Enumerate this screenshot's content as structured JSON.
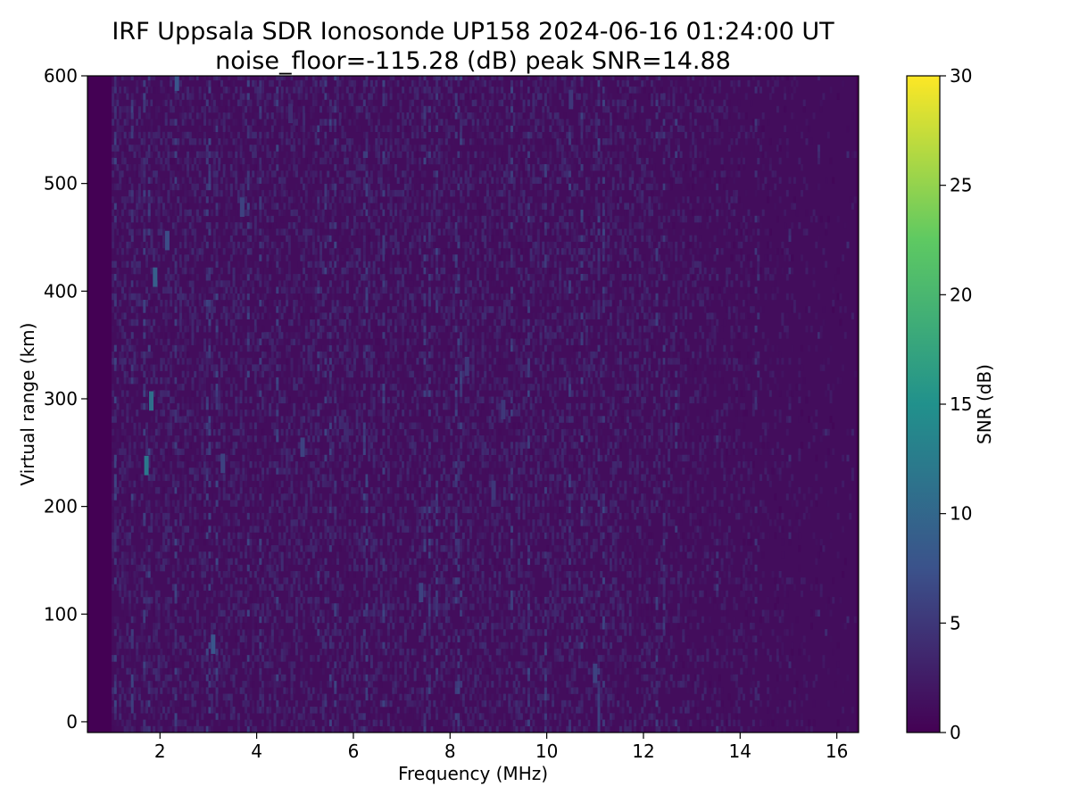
{
  "chart_data": {
    "type": "heatmap",
    "title": "IRF Uppsala SDR Ionosonde UP158 2024-06-16 01:24:00  UT",
    "subtitle": "noise_floor=-115.28 (dB) peak SNR=14.88",
    "xlabel": "Frequency (MHz)",
    "ylabel": "Virtual range (km)",
    "xlim": [
      0.5,
      16.45
    ],
    "ylim": [
      -10,
      600
    ],
    "x_ticks": [
      2,
      4,
      6,
      8,
      10,
      12,
      14,
      16
    ],
    "x_tick_labels": [
      "2",
      "4",
      "6",
      "8",
      "10",
      "12",
      "14",
      "16"
    ],
    "y_ticks": [
      0,
      100,
      200,
      300,
      400,
      500,
      600
    ],
    "y_tick_labels": [
      "0",
      "100",
      "200",
      "300",
      "400",
      "500",
      "600"
    ],
    "frequency_range_mhz": [
      1.0,
      16.4
    ],
    "background_snr_db": 0.5,
    "colorbar": {
      "label": "SNR (dB)",
      "range": [
        0,
        30
      ],
      "ticks": [
        0,
        5,
        10,
        15,
        20,
        25,
        30
      ],
      "tick_labels": [
        "0",
        "5",
        "10",
        "15",
        "20",
        "25",
        "30"
      ],
      "colormap": "viridis"
    },
    "grid": false,
    "legend": "none",
    "highlights": [
      {
        "freq_mhz": 1.72,
        "range_km": 238,
        "snr_db": 12
      },
      {
        "freq_mhz": 1.82,
        "range_km": 298,
        "snr_db": 11
      },
      {
        "freq_mhz": 1.9,
        "range_km": 413,
        "snr_db": 9
      },
      {
        "freq_mhz": 2.35,
        "range_km": 595,
        "snr_db": 8
      },
      {
        "freq_mhz": 2.15,
        "range_km": 447,
        "snr_db": 7
      },
      {
        "freq_mhz": 3.1,
        "range_km": 72,
        "snr_db": 8
      },
      {
        "freq_mhz": 4.95,
        "range_km": 255,
        "snr_db": 6
      },
      {
        "freq_mhz": 3.3,
        "range_km": 240,
        "snr_db": 6
      },
      {
        "freq_mhz": 8.35,
        "range_km": 330,
        "snr_db": 5
      },
      {
        "freq_mhz": 9.1,
        "range_km": 290,
        "snr_db": 5
      },
      {
        "freq_mhz": 8.9,
        "range_km": 215,
        "snr_db": 5
      },
      {
        "freq_mhz": 10.5,
        "range_km": 578,
        "snr_db": 5
      },
      {
        "freq_mhz": 7.4,
        "range_km": 120,
        "snr_db": 6
      },
      {
        "freq_mhz": 11.0,
        "range_km": 45,
        "snr_db": 6
      },
      {
        "freq_mhz": 4.7,
        "range_km": 565,
        "snr_db": 4
      },
      {
        "freq_mhz": 3.7,
        "range_km": 478,
        "snr_db": 6
      }
    ],
    "colors": {
      "viridis_0": "#440154",
      "viridis_25": "#3b528b",
      "viridis_50": "#21918c",
      "viridis_75": "#5ec962",
      "viridis_100": "#fde725"
    }
  }
}
